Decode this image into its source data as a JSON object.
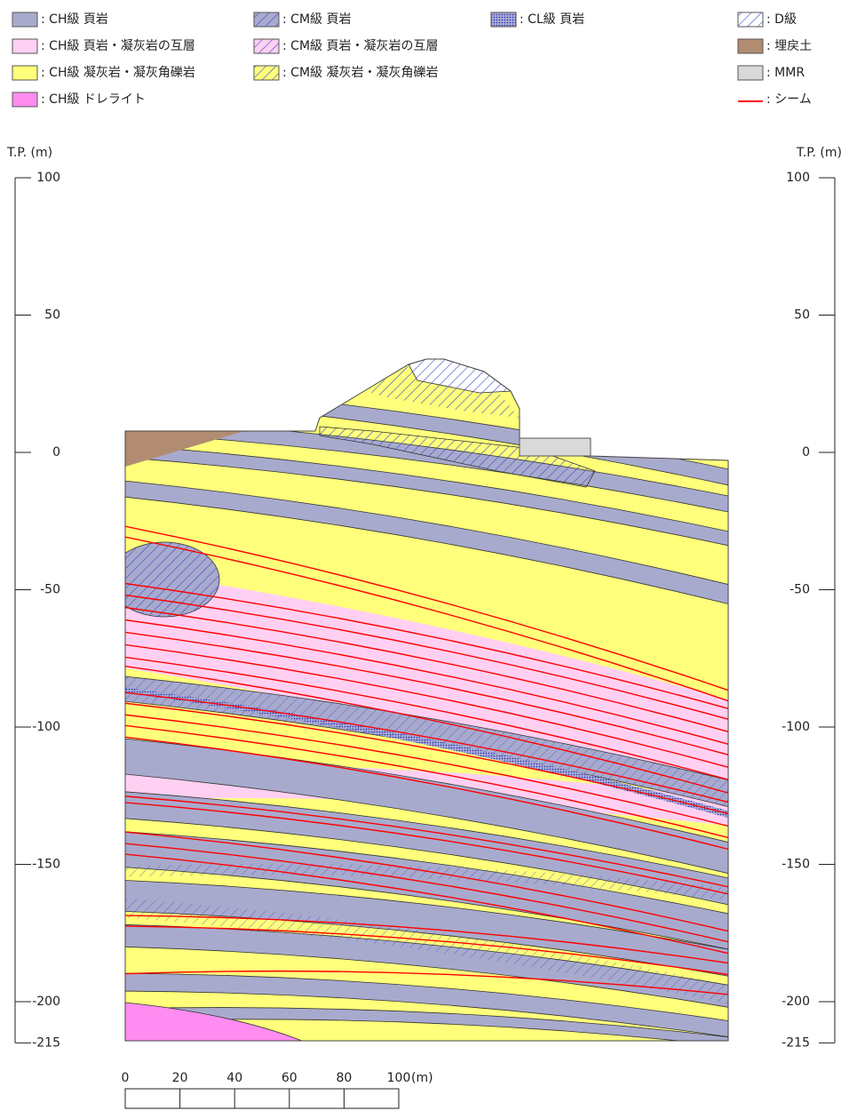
{
  "legend": [
    {
      "label": ": CH級 頁岩"
    },
    {
      "label": ": CM級 頁岩"
    },
    {
      "label": ": CL級 頁岩"
    },
    {
      "label": ": D級"
    },
    {
      "label": ": CH級 頁岩・凝灰岩の互層"
    },
    {
      "label": ": CM級 頁岩・凝灰岩の互層"
    },
    {
      "label": ": 埋戻土"
    },
    {
      "label": ": CH級 凝灰岩・凝灰角礫岩"
    },
    {
      "label": ": CM級 凝灰岩・凝灰角礫岩"
    },
    {
      "label": ": MMR"
    },
    {
      "label": ": CH級 ドレライト"
    },
    {
      "label": ": シーム"
    }
  ],
  "elevation_axis": {
    "title": "T.P. (m)",
    "ticks": [
      100,
      50,
      0,
      -50,
      -100,
      -150,
      -200,
      -215
    ]
  },
  "scale_bar": {
    "ticks": [
      0,
      20,
      40,
      60,
      80,
      100
    ],
    "unit": "(m)"
  }
}
